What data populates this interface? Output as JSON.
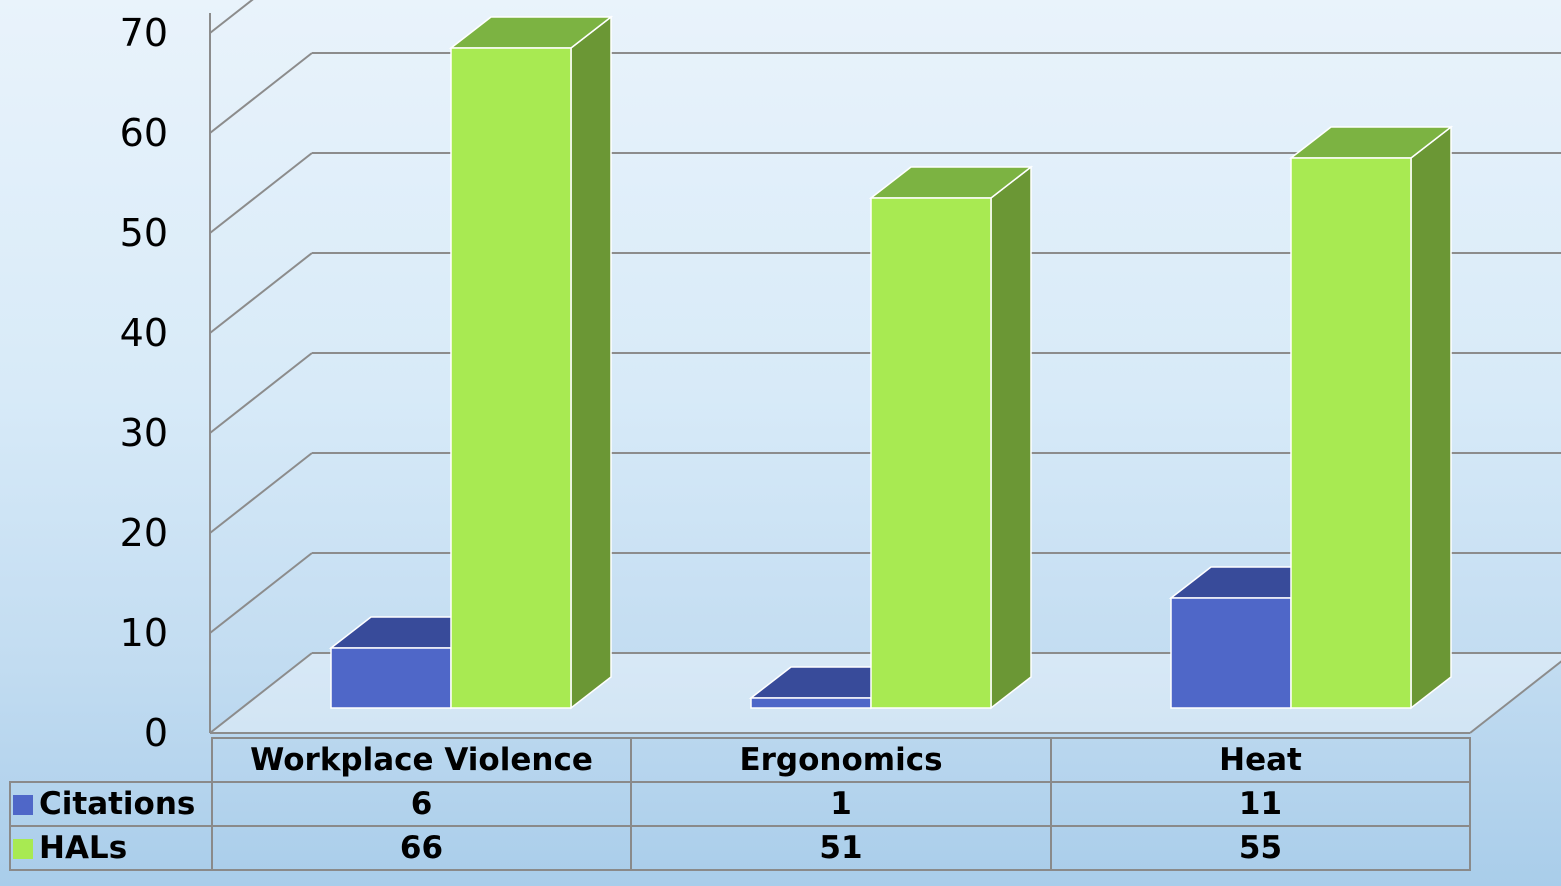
{
  "chart_data": {
    "type": "bar",
    "categories": [
      "Workplace Violence",
      "Ergonomics",
      "Heat"
    ],
    "series": [
      {
        "name": "Citations",
        "values": [
          6,
          1,
          11
        ],
        "color": "#4f67c8",
        "top_color": "#384b9a",
        "side_color": "#2f3f86"
      },
      {
        "name": "HALs",
        "values": [
          66,
          51,
          55
        ],
        "color": "#a8ea52",
        "top_color": "#7cb342",
        "side_color": "#6b9735"
      }
    ],
    "y_ticks": [
      "0",
      "10",
      "20",
      "30",
      "40",
      "50",
      "60",
      "70"
    ],
    "ylim": [
      0,
      70
    ],
    "grid": true,
    "legend": "data table below chart",
    "title": "",
    "xlabel": "",
    "ylabel": ""
  }
}
